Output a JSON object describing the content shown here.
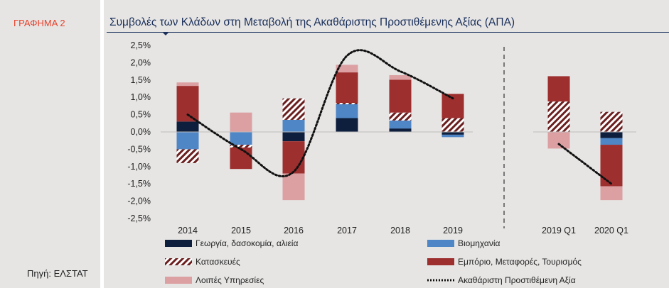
{
  "figure_label": "ΓΡΑΦΗΜΑ 2",
  "source": "Πηγή: ΕΛΣΤΑΤ",
  "colors": {
    "agriculture": "#0d1f3c",
    "industry": "#4e86c6",
    "construction": "#6b1f1f",
    "trade": "#9e2f2f",
    "other_services": "#dca0a2",
    "gva_line": "#111111",
    "title": "#1a2f5a"
  },
  "chart_data": {
    "type": "bar",
    "title": "Συμβολές των Κλάδων στη Μεταβολή της Ακαθάριστης Προστιθέμενης Αξίας (ΑΠΑ)",
    "stacked": true,
    "xlabel": "",
    "ylabel": "",
    "ylim": [
      -2.5,
      2.5
    ],
    "yticks": [
      "2,5%",
      "2,0%",
      "1,5%",
      "1,0%",
      "0,5%",
      "0,0%",
      "-0,5%",
      "-1,0%",
      "-1,5%",
      "-2,0%",
      "-2,5%"
    ],
    "categories": [
      "2014",
      "2015",
      "2016",
      "2017",
      "2018",
      "2019",
      "2019 Q1",
      "2020 Q1"
    ],
    "grid": false,
    "legend_position": "bottom",
    "series": [
      {
        "name": "Γεωργία, δασοκομία, αλιεία",
        "key": "agriculture",
        "style": "solid",
        "values": [
          0.3,
          0.0,
          -0.27,
          0.4,
          0.1,
          -0.08,
          0.0,
          -0.18
        ]
      },
      {
        "name": "Βιομηχανία",
        "key": "industry",
        "style": "solid",
        "values": [
          -0.5,
          -0.37,
          0.35,
          0.4,
          0.23,
          -0.07,
          0.0,
          -0.19
        ]
      },
      {
        "name": "Κατασκευές",
        "key": "construction",
        "style": "hatched",
        "values": [
          -0.4,
          -0.08,
          0.62,
          0.04,
          0.23,
          0.4,
          0.88,
          0.58
        ]
      },
      {
        "name": "Εμπόριο, Μεταφορές, Τουρισμός",
        "key": "trade",
        "style": "solid",
        "values": [
          1.03,
          -0.62,
          -0.93,
          0.88,
          0.95,
          0.7,
          0.73,
          -1.2
        ]
      },
      {
        "name": "Λοιπές Υπηρεσίες",
        "key": "other_services",
        "style": "solid",
        "values": [
          0.1,
          0.56,
          -0.77,
          0.22,
          0.13,
          0.0,
          -0.48,
          -0.4
        ]
      },
      {
        "name": "Ακαθάριστη Προστιθέμενη Αξία",
        "key": "gva_line",
        "style": "dotted-line",
        "points": [
          {
            "x": "2014",
            "y": 0.5
          },
          {
            "x": "2015",
            "y": -0.5
          },
          {
            "x": "2016",
            "y": -1.15
          },
          {
            "x": "2017",
            "y": 2.2
          },
          {
            "x": "2018",
            "y": 1.75
          },
          {
            "x": "2019",
            "y": 0.97
          },
          {
            "x": "2019 Q1",
            "y": -0.35
          },
          {
            "x": "2020 Q1",
            "y": -1.5
          }
        ]
      }
    ],
    "break_after_category": "2019"
  }
}
